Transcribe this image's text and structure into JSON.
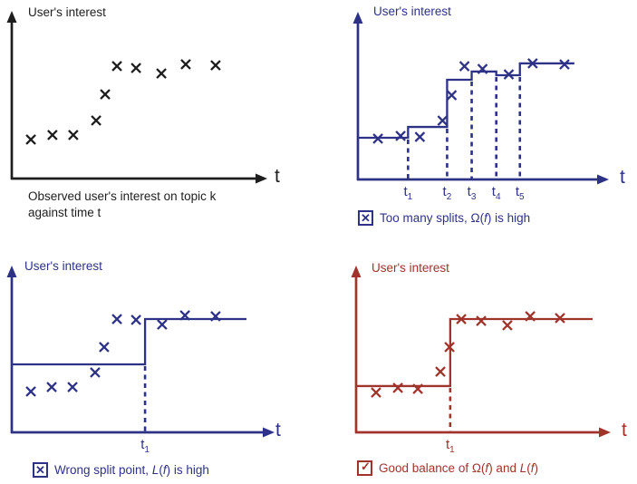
{
  "figure": {
    "description": "Step function fitting of user's interest over time",
    "colors": {
      "black": "#1e1e1e",
      "navy": "#2e3287",
      "red": "#a0342c",
      "background": "#ffffff"
    },
    "icons": {
      "x_box": "cross-in-box",
      "check_box": "check-in-box"
    }
  },
  "chart_data": [
    {
      "type": "scatter",
      "title": "Observed user's interest on topic k against time t",
      "ylabel": "User's interest",
      "xlabel": "t",
      "color": "#1e1e1e",
      "xlim": [
        0,
        10
      ],
      "ylim": [
        0,
        10
      ],
      "grid": false,
      "points": [
        [
          0.76,
          2.34
        ],
        [
          1.62,
          2.61
        ],
        [
          2.45,
          2.61
        ],
        [
          3.36,
          3.48
        ],
        [
          3.72,
          5.05
        ],
        [
          4.19,
          6.74
        ],
        [
          4.95,
          6.63
        ],
        [
          5.96,
          6.3
        ],
        [
          6.93,
          6.85
        ],
        [
          8.12,
          6.79
        ]
      ],
      "caption_lines": [
        "Observed user's interest on topic k",
        "against time t"
      ]
    },
    {
      "type": "scatter+step",
      "title": "Too many splits, Ω(f) is high",
      "ylabel": "User's interest",
      "xlabel": "t",
      "color": "#2e3287",
      "xlim": [
        0,
        10
      ],
      "ylim": [
        0,
        10
      ],
      "grid": false,
      "points": [
        [
          0.83,
          2.45
        ],
        [
          1.77,
          2.61
        ],
        [
          2.57,
          2.55
        ],
        [
          3.51,
          3.53
        ],
        [
          3.89,
          5.05
        ],
        [
          4.42,
          6.79
        ],
        [
          5.17,
          6.63
        ],
        [
          6.26,
          6.3
        ],
        [
          7.25,
          6.96
        ],
        [
          8.57,
          6.9
        ]
      ],
      "steps": [
        {
          "from": 0,
          "to": 2.08,
          "level": 2.5
        },
        {
          "from": 2.08,
          "to": 3.7,
          "level": 3.15
        },
        {
          "from": 3.7,
          "to": 4.72,
          "level": 5.98
        },
        {
          "from": 4.72,
          "to": 5.74,
          "level": 6.47
        },
        {
          "from": 5.74,
          "to": 6.72,
          "level": 6.25
        },
        {
          "from": 6.72,
          "to": 8.98,
          "level": 6.96
        }
      ],
      "splits": [
        {
          "x": 2.08,
          "base": "t",
          "sub": "1"
        },
        {
          "x": 3.7,
          "base": "t",
          "sub": "2"
        },
        {
          "x": 4.72,
          "base": "t",
          "sub": "3"
        },
        {
          "x": 5.74,
          "base": "t",
          "sub": "4"
        },
        {
          "x": 6.72,
          "base": "t",
          "sub": "5"
        }
      ],
      "icon": "x_box",
      "icon_glyph": "✕",
      "caption_segments": [
        {
          "t": "Too many splits, Ω("
        },
        {
          "t": "f",
          "i": true
        },
        {
          "t": ")  is high"
        }
      ]
    },
    {
      "type": "scatter+step",
      "title": "Wrong split point, L(f) is high",
      "ylabel": "User's interest",
      "xlabel": "t",
      "color": "#2e3287",
      "xlim": [
        0,
        10
      ],
      "ylim": [
        0,
        10
      ],
      "grid": false,
      "points": [
        [
          0.76,
          2.46
        ],
        [
          1.59,
          2.73
        ],
        [
          2.42,
          2.73
        ],
        [
          3.32,
          3.61
        ],
        [
          3.68,
          5.14
        ],
        [
          4.19,
          6.83
        ],
        [
          4.95,
          6.78
        ],
        [
          5.99,
          6.5
        ],
        [
          6.9,
          7.05
        ],
        [
          8.12,
          7.0
        ]
      ],
      "steps": [
        {
          "from": 0,
          "to": 5.31,
          "level": 4.1
        },
        {
          "from": 5.31,
          "to": 9.35,
          "level": 6.83
        }
      ],
      "splits": [
        {
          "x": 5.31,
          "base": "t",
          "sub": "1"
        }
      ],
      "icon": "x_box",
      "icon_glyph": "✕",
      "caption_segments": [
        {
          "t": "Wrong split point, "
        },
        {
          "t": "L",
          "i": true
        },
        {
          "t": "("
        },
        {
          "t": "f",
          "i": true
        },
        {
          "t": ") is high"
        }
      ]
    },
    {
      "type": "scatter+step",
      "title": "Good balance of Ω(f) and L(f)",
      "ylabel": "User's interest",
      "xlabel": "t",
      "color": "#a0342c",
      "xlim": [
        0,
        10
      ],
      "ylim": [
        0,
        10
      ],
      "grid": false,
      "points": [
        [
          0.83,
          2.4
        ],
        [
          1.74,
          2.68
        ],
        [
          2.57,
          2.62
        ],
        [
          3.51,
          3.66
        ],
        [
          3.89,
          5.14
        ],
        [
          4.38,
          6.83
        ],
        [
          5.21,
          6.72
        ],
        [
          6.3,
          6.45
        ],
        [
          7.25,
          7.0
        ],
        [
          8.49,
          6.89
        ]
      ],
      "steps": [
        {
          "from": 0,
          "to": 3.92,
          "level": 2.79
        },
        {
          "from": 3.92,
          "to": 9.85,
          "level": 6.83
        }
      ],
      "splits": [
        {
          "x": 3.92,
          "base": "t",
          "sub": "1"
        }
      ],
      "icon": "check_box",
      "icon_glyph": "✓",
      "caption_segments": [
        {
          "t": "Good balance of Ω("
        },
        {
          "t": "f",
          "i": true
        },
        {
          "t": ") and "
        },
        {
          "t": "L",
          "i": true
        },
        {
          "t": "("
        },
        {
          "t": "f",
          "i": true
        },
        {
          "t": ")"
        }
      ]
    }
  ]
}
